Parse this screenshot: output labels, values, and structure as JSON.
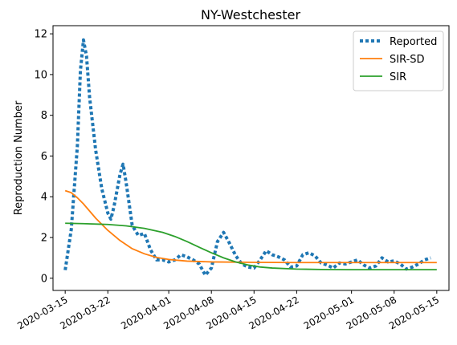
{
  "chart_data": {
    "type": "line",
    "title": "NY-Westchester",
    "ylabel": "Reproduction Number",
    "xlabel": "",
    "ylim": [
      -0.6,
      12.4
    ],
    "xlim": [
      "2020-03-13",
      "2020-05-17"
    ],
    "grid": false,
    "legend_position": "top-right",
    "xticks": [
      "2020-03-15",
      "2020-03-22",
      "2020-04-01",
      "2020-04-08",
      "2020-04-15",
      "2020-04-22",
      "2020-05-01",
      "2020-05-08",
      "2020-05-15"
    ],
    "yticks": [
      0,
      2,
      4,
      6,
      8,
      10,
      12
    ],
    "series": [
      {
        "name": "Reported",
        "color": "#1f77b4",
        "style": "dotted",
        "points": [
          [
            "2020-03-15",
            0.4
          ],
          [
            "2020-03-16",
            2.4
          ],
          [
            "2020-03-17",
            6.5
          ],
          [
            "2020-03-17 12:00",
            10.2
          ],
          [
            "2020-03-18",
            11.7
          ],
          [
            "2020-03-18 12:00",
            10.9
          ],
          [
            "2020-03-19",
            8.9
          ],
          [
            "2020-03-20",
            6.3
          ],
          [
            "2020-03-21",
            4.4
          ],
          [
            "2020-03-22",
            3.2
          ],
          [
            "2020-03-22 12:00",
            2.9
          ],
          [
            "2020-03-23",
            3.5
          ],
          [
            "2020-03-24",
            5.1
          ],
          [
            "2020-03-24 12:00",
            5.6
          ],
          [
            "2020-03-25",
            4.7
          ],
          [
            "2020-03-26",
            2.6
          ],
          [
            "2020-03-27",
            2.1
          ],
          [
            "2020-03-28",
            2.2
          ],
          [
            "2020-03-29",
            1.4
          ],
          [
            "2020-03-30",
            0.9
          ],
          [
            "2020-03-31",
            0.9
          ],
          [
            "2020-04-01",
            0.8
          ],
          [
            "2020-04-02",
            0.9
          ],
          [
            "2020-04-03",
            1.15
          ],
          [
            "2020-04-04",
            1.05
          ],
          [
            "2020-04-05",
            0.9
          ],
          [
            "2020-04-06",
            0.7
          ],
          [
            "2020-04-07",
            0.15
          ],
          [
            "2020-04-08",
            0.5
          ],
          [
            "2020-04-09",
            1.8
          ],
          [
            "2020-04-10",
            2.25
          ],
          [
            "2020-04-11",
            1.7
          ],
          [
            "2020-04-12",
            1.1
          ],
          [
            "2020-04-13",
            0.7
          ],
          [
            "2020-04-14",
            0.55
          ],
          [
            "2020-04-15",
            0.5
          ],
          [
            "2020-04-16",
            0.9
          ],
          [
            "2020-04-17",
            1.35
          ],
          [
            "2020-04-18",
            1.15
          ],
          [
            "2020-04-19",
            1.05
          ],
          [
            "2020-04-20",
            0.9
          ],
          [
            "2020-04-21",
            0.55
          ],
          [
            "2020-04-22",
            0.6
          ],
          [
            "2020-04-23",
            1.15
          ],
          [
            "2020-04-24",
            1.25
          ],
          [
            "2020-04-25",
            1.1
          ],
          [
            "2020-04-26",
            0.75
          ],
          [
            "2020-04-27",
            0.65
          ],
          [
            "2020-04-28",
            0.5
          ],
          [
            "2020-04-29",
            0.75
          ],
          [
            "2020-04-30",
            0.7
          ],
          [
            "2020-05-01",
            0.8
          ],
          [
            "2020-05-02",
            0.9
          ],
          [
            "2020-05-03",
            0.65
          ],
          [
            "2020-05-04",
            0.5
          ],
          [
            "2020-05-05",
            0.6
          ],
          [
            "2020-05-06",
            1.0
          ],
          [
            "2020-05-07",
            0.8
          ],
          [
            "2020-05-08",
            0.85
          ],
          [
            "2020-05-09",
            0.7
          ],
          [
            "2020-05-10",
            0.45
          ],
          [
            "2020-05-11",
            0.55
          ],
          [
            "2020-05-12",
            0.7
          ],
          [
            "2020-05-13",
            0.9
          ],
          [
            "2020-05-14",
            1.0
          ]
        ]
      },
      {
        "name": "SIR-SD",
        "color": "#ff7f0e",
        "style": "solid",
        "points": [
          [
            "2020-03-15",
            4.3
          ],
          [
            "2020-03-16",
            4.2
          ],
          [
            "2020-03-17",
            3.95
          ],
          [
            "2020-03-18",
            3.65
          ],
          [
            "2020-03-19",
            3.3
          ],
          [
            "2020-03-20",
            2.95
          ],
          [
            "2020-03-21",
            2.65
          ],
          [
            "2020-03-22",
            2.35
          ],
          [
            "2020-03-23",
            2.1
          ],
          [
            "2020-03-24",
            1.85
          ],
          [
            "2020-03-26",
            1.45
          ],
          [
            "2020-03-28",
            1.2
          ],
          [
            "2020-03-30",
            1.02
          ],
          [
            "2020-04-01",
            0.92
          ],
          [
            "2020-04-04",
            0.84
          ],
          [
            "2020-04-08",
            0.8
          ],
          [
            "2020-04-15",
            0.78
          ],
          [
            "2020-04-22",
            0.77
          ],
          [
            "2020-05-01",
            0.77
          ],
          [
            "2020-05-08",
            0.77
          ],
          [
            "2020-05-15",
            0.77
          ]
        ]
      },
      {
        "name": "SIR",
        "color": "#2ca02c",
        "style": "solid",
        "points": [
          [
            "2020-03-15",
            2.7
          ],
          [
            "2020-03-18",
            2.68
          ],
          [
            "2020-03-22",
            2.64
          ],
          [
            "2020-03-25",
            2.57
          ],
          [
            "2020-03-28",
            2.45
          ],
          [
            "2020-03-31",
            2.25
          ],
          [
            "2020-04-02",
            2.05
          ],
          [
            "2020-04-04",
            1.8
          ],
          [
            "2020-04-06",
            1.52
          ],
          [
            "2020-04-08",
            1.25
          ],
          [
            "2020-04-10",
            1.0
          ],
          [
            "2020-04-12",
            0.8
          ],
          [
            "2020-04-14",
            0.65
          ],
          [
            "2020-04-16",
            0.55
          ],
          [
            "2020-04-18",
            0.5
          ],
          [
            "2020-04-22",
            0.45
          ],
          [
            "2020-04-26",
            0.43
          ],
          [
            "2020-05-01",
            0.42
          ],
          [
            "2020-05-08",
            0.42
          ],
          [
            "2020-05-15",
            0.42
          ]
        ]
      }
    ]
  }
}
